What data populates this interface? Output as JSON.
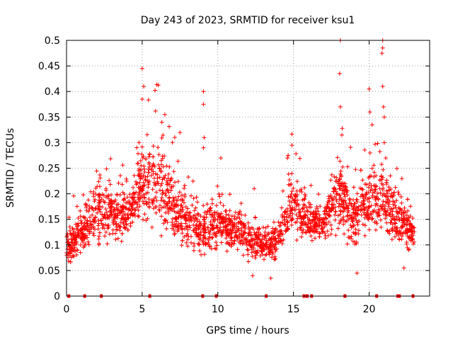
{
  "chart_data": {
    "type": "scatter",
    "title": "Day 243 of 2023, SRMTID for receiver ksu1",
    "xlabel": "GPS time / hours",
    "ylabel": "SRMTID / TECUs",
    "xlim": [
      0,
      24
    ],
    "ylim": [
      0,
      0.5
    ],
    "x_ticks": [
      "0",
      "5",
      "10",
      "15",
      "20"
    ],
    "x_tick_values": [
      0,
      5,
      10,
      15,
      20
    ],
    "y_ticks": [
      "0",
      "0.05",
      "0.1",
      "0.15",
      "0.2",
      "0.25",
      "0.3",
      "0.35",
      "0.4",
      "0.45",
      "0.5"
    ],
    "y_tick_values": [
      0,
      0.05,
      0.1,
      0.15,
      0.2,
      0.25,
      0.3,
      0.35,
      0.4,
      0.45,
      0.5
    ],
    "grid": true,
    "marker": "+",
    "series_color": "#ff0000",
    "envelope": {
      "description": "approximate typical range of the dense point cloud, sampled hourly",
      "hours": [
        0,
        1,
        2,
        3,
        4,
        5,
        6,
        7,
        8,
        9,
        10,
        11,
        12,
        13,
        14,
        15,
        16,
        17,
        18,
        19,
        20,
        21,
        22,
        23
      ],
      "low": [
        0.05,
        0.06,
        0.08,
        0.08,
        0.1,
        0.12,
        0.1,
        0.09,
        0.08,
        0.06,
        0.08,
        0.08,
        0.06,
        0.05,
        0.07,
        0.1,
        0.09,
        0.1,
        0.09,
        0.07,
        0.1,
        0.1,
        0.08,
        0.08
      ],
      "high": [
        0.13,
        0.17,
        0.24,
        0.22,
        0.2,
        0.3,
        0.32,
        0.26,
        0.2,
        0.18,
        0.2,
        0.17,
        0.16,
        0.13,
        0.15,
        0.26,
        0.2,
        0.17,
        0.3,
        0.2,
        0.28,
        0.26,
        0.2,
        0.15
      ]
    },
    "notable_points": [
      {
        "x": 5.0,
        "y": 0.445
      },
      {
        "x": 5.1,
        "y": 0.41
      },
      {
        "x": 5.0,
        "y": 0.385
      },
      {
        "x": 6.5,
        "y": 0.355
      },
      {
        "x": 6.3,
        "y": 0.34
      },
      {
        "x": 7.5,
        "y": 0.32
      },
      {
        "x": 9.05,
        "y": 0.4
      },
      {
        "x": 9.05,
        "y": 0.375
      },
      {
        "x": 9.1,
        "y": 0.31
      },
      {
        "x": 9.05,
        "y": 0.29
      },
      {
        "x": 10.2,
        "y": 0.27
      },
      {
        "x": 12.4,
        "y": 0.21
      },
      {
        "x": 14.6,
        "y": 0.27
      },
      {
        "x": 14.9,
        "y": 0.295
      },
      {
        "x": 18.1,
        "y": 0.5
      },
      {
        "x": 18.05,
        "y": 0.435
      },
      {
        "x": 18.1,
        "y": 0.37
      },
      {
        "x": 18.2,
        "y": 0.315
      },
      {
        "x": 20.0,
        "y": 0.405
      },
      {
        "x": 20.05,
        "y": 0.36
      },
      {
        "x": 20.2,
        "y": 0.335
      },
      {
        "x": 20.9,
        "y": 0.5
      },
      {
        "x": 20.9,
        "y": 0.485
      },
      {
        "x": 20.85,
        "y": 0.475
      },
      {
        "x": 20.9,
        "y": 0.41
      },
      {
        "x": 20.95,
        "y": 0.37
      },
      {
        "x": 21.0,
        "y": 0.35
      },
      {
        "x": 21.0,
        "y": 0.3
      },
      {
        "x": 21.1,
        "y": 0.27
      },
      {
        "x": 21.4,
        "y": 0.235
      },
      {
        "x": 13.5,
        "y": 0.035
      },
      {
        "x": 12.3,
        "y": 0.04
      },
      {
        "x": 19.2,
        "y": 0.045
      },
      {
        "x": 22.3,
        "y": 0.055
      }
    ],
    "zero_markers_x": [
      0.15,
      1.2,
      2.3,
      5.5,
      9.0,
      9.9,
      13.2,
      15.7,
      15.9,
      16.2,
      18.4,
      20.5,
      21.9,
      22.0,
      22.9
    ]
  }
}
